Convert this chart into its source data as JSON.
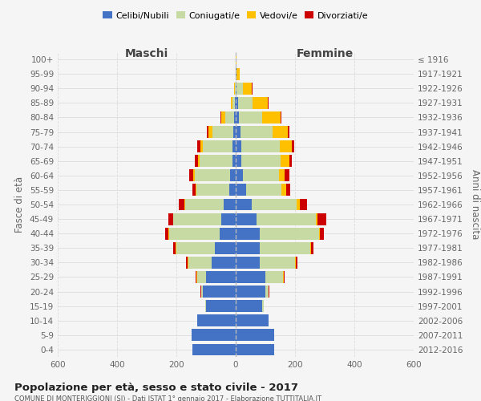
{
  "age_groups": [
    "0-4",
    "5-9",
    "10-14",
    "15-19",
    "20-24",
    "25-29",
    "30-34",
    "35-39",
    "40-44",
    "45-49",
    "50-54",
    "55-59",
    "60-64",
    "65-69",
    "70-74",
    "75-79",
    "80-84",
    "85-89",
    "90-94",
    "95-99",
    "100+"
  ],
  "birth_years": [
    "2012-2016",
    "2007-2011",
    "2002-2006",
    "1997-2001",
    "1992-1996",
    "1987-1991",
    "1982-1986",
    "1977-1981",
    "1972-1976",
    "1967-1971",
    "1962-1966",
    "1957-1961",
    "1952-1956",
    "1947-1951",
    "1942-1946",
    "1937-1941",
    "1932-1936",
    "1927-1931",
    "1922-1926",
    "1917-1921",
    "≤ 1916"
  ],
  "maschi_celibe": [
    145,
    150,
    130,
    100,
    110,
    100,
    80,
    70,
    55,
    50,
    40,
    22,
    18,
    12,
    10,
    8,
    5,
    2,
    1,
    0,
    0
  ],
  "maschi_coniugato": [
    0,
    0,
    0,
    2,
    5,
    30,
    80,
    130,
    170,
    160,
    130,
    110,
    120,
    110,
    100,
    70,
    30,
    8,
    2,
    0,
    0
  ],
  "maschi_vedovo": [
    0,
    0,
    0,
    0,
    1,
    2,
    2,
    2,
    2,
    2,
    3,
    3,
    5,
    5,
    10,
    15,
    15,
    5,
    2,
    0,
    0
  ],
  "maschi_divorziato": [
    0,
    0,
    0,
    0,
    2,
    2,
    5,
    10,
    10,
    15,
    20,
    10,
    15,
    12,
    10,
    5,
    2,
    2,
    0,
    0,
    0
  ],
  "femmine_celibe": [
    130,
    130,
    110,
    90,
    100,
    100,
    80,
    80,
    80,
    70,
    55,
    35,
    25,
    20,
    18,
    15,
    10,
    8,
    4,
    2,
    0
  ],
  "femmine_coniugato": [
    0,
    0,
    0,
    5,
    10,
    60,
    120,
    170,
    200,
    200,
    150,
    120,
    120,
    130,
    130,
    110,
    80,
    50,
    20,
    2,
    0
  ],
  "femmine_vedovo": [
    0,
    0,
    0,
    0,
    1,
    2,
    2,
    3,
    3,
    5,
    10,
    15,
    20,
    30,
    40,
    50,
    60,
    50,
    30,
    10,
    2
  ],
  "femmine_divorziato": [
    0,
    0,
    0,
    0,
    2,
    3,
    5,
    10,
    15,
    30,
    25,
    15,
    15,
    8,
    8,
    5,
    3,
    3,
    2,
    0,
    0
  ],
  "colors": {
    "celibe": "#4472c4",
    "coniugato": "#c8daa3",
    "vedovo": "#ffc000",
    "divorziato": "#cc0000"
  },
  "title": "Popolazione per età, sesso e stato civile - 2017",
  "subtitle": "COMUNE DI MONTERIGGIONI (SI) - Dati ISTAT 1° gennaio 2017 - Elaborazione TUTTITALIA.IT",
  "xlabel_left": "Maschi",
  "xlabel_right": "Femmine",
  "ylabel_left": "Fasce di età",
  "ylabel_right": "Anni di nascita",
  "xlim": 600,
  "background_color": "#f5f5f5",
  "grid_color": "#dddddd"
}
